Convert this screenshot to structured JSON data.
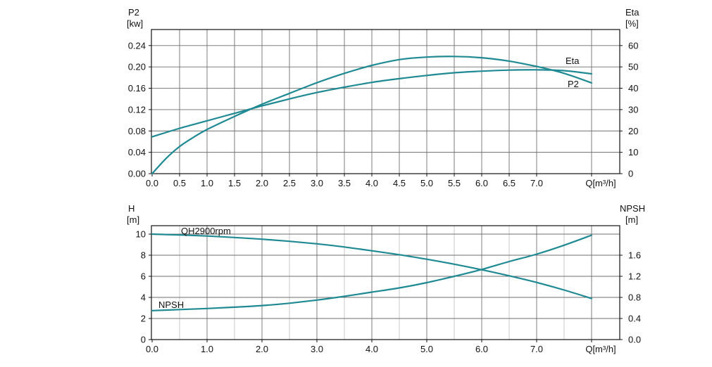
{
  "colors": {
    "curve": "#1f8a93",
    "grid_major": "#6e6e6e",
    "grid_minor": "#bdbdbd",
    "axis": "#111111"
  },
  "chart_data": [
    {
      "type": "line",
      "x_ticks": [
        "0.0",
        "0.5",
        "1.0",
        "1.5",
        "2.0",
        "2.5",
        "3.0",
        "3.5",
        "4.0",
        "4.5",
        "5.0",
        "5.5",
        "6.0",
        "6.5",
        "7.0"
      ],
      "xlabel": "Q[m³/h]",
      "xlim": [
        0,
        8
      ],
      "left_axis": {
        "label_top": "P2",
        "label_unit": "[kw]",
        "ticks": [
          "0.00",
          "0.04",
          "0.08",
          "0.12",
          "0.16",
          "0.20",
          "0.24"
        ],
        "ylim": [
          0,
          0.27
        ]
      },
      "right_axis": {
        "label_top": "Eta",
        "label_unit": "[%]",
        "ticks": [
          "0",
          "10",
          "20",
          "30",
          "40",
          "50",
          "60"
        ],
        "ylim": [
          0,
          67.5
        ]
      },
      "grid": true,
      "series": [
        {
          "name": "Eta",
          "axis": "right",
          "x": [
            0,
            0.25,
            0.5,
            0.75,
            1,
            1.5,
            2,
            2.5,
            3,
            3.5,
            4,
            4.5,
            5,
            5.5,
            6,
            6.5,
            7,
            7.5,
            8
          ],
          "y": [
            0,
            7,
            12.7,
            17,
            20.7,
            26.8,
            32.5,
            37.6,
            42.6,
            47,
            50.7,
            53.4,
            54.6,
            54.9,
            54.3,
            52.7,
            50.2,
            47,
            42.5
          ]
        },
        {
          "name": "P2",
          "axis": "left",
          "x": [
            0,
            0.5,
            1,
            1.5,
            2,
            2.5,
            3,
            3.5,
            4,
            4.5,
            5,
            5.5,
            6,
            6.5,
            7,
            7.5,
            8
          ],
          "y": [
            0.069,
            0.085,
            0.099,
            0.113,
            0.127,
            0.14,
            0.152,
            0.162,
            0.171,
            0.178,
            0.184,
            0.189,
            0.192,
            0.194,
            0.1945,
            0.193,
            0.187
          ]
        }
      ]
    },
    {
      "type": "line",
      "x_ticks": [
        "0.0",
        "1.0",
        "2.0",
        "3.0",
        "4.0",
        "5.0",
        "6.0",
        "7.0"
      ],
      "xlabel": "Q[m³/h]",
      "xlim": [
        0,
        8
      ],
      "left_axis": {
        "label_top": "H",
        "label_unit": "[m]",
        "ticks": [
          "0",
          "2",
          "4",
          "6",
          "8",
          "10"
        ],
        "ylim": [
          0,
          10.8
        ]
      },
      "right_axis": {
        "label_top": "NPSH",
        "label_unit": "[m]",
        "ticks": [
          "0.0",
          "0.4",
          "0.8",
          "1.2",
          "1.6"
        ],
        "ylim": [
          0,
          2.16
        ]
      },
      "grid": true,
      "series": [
        {
          "name": "QH2900rpm",
          "axis": "left",
          "x": [
            0,
            0.5,
            1,
            1.5,
            2,
            2.5,
            3,
            3.5,
            4,
            4.5,
            5,
            5.5,
            6,
            6.5,
            7,
            7.5,
            8
          ],
          "y": [
            10.0,
            9.92,
            9.82,
            9.68,
            9.52,
            9.32,
            9.08,
            8.78,
            8.42,
            8.05,
            7.62,
            7.15,
            6.62,
            6.05,
            5.42,
            4.7,
            3.9
          ]
        },
        {
          "name": "NPSH",
          "axis": "right",
          "x": [
            0,
            0.5,
            1,
            1.5,
            2,
            2.5,
            3,
            3.5,
            4,
            4.5,
            5,
            5.5,
            6,
            6.5,
            7,
            7.5,
            8
          ],
          "y": [
            0.55,
            0.57,
            0.59,
            0.615,
            0.645,
            0.69,
            0.75,
            0.82,
            0.9,
            0.98,
            1.08,
            1.2,
            1.33,
            1.48,
            1.62,
            1.79,
            1.98
          ]
        }
      ]
    }
  ]
}
